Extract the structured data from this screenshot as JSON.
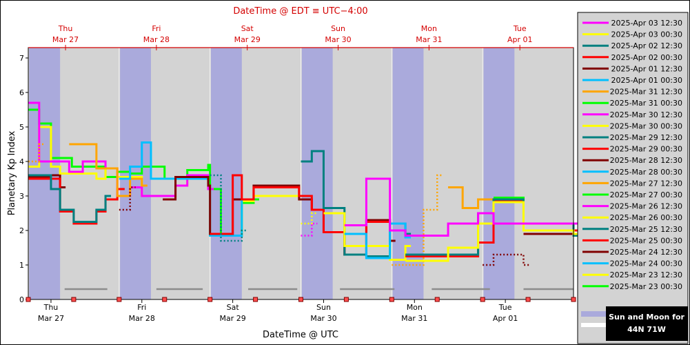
{
  "chart_data": {
    "type": "line",
    "title": "DateTime @ EDT ≡ UTC−4:00",
    "xlabel": "DateTime @ UTC",
    "ylabel": "Planetary Kp Index",
    "ylim": [
      0,
      7.3
    ],
    "xlim": [
      0,
      6
    ],
    "yticks": [
      "0",
      "1",
      "2",
      "3",
      "4",
      "5",
      "6",
      "7"
    ],
    "bottom_ticks": [
      {
        "day": "Thu",
        "date": "Mar 27",
        "x": 0.25
      },
      {
        "day": "Fri",
        "date": "Mar 28",
        "x": 1.25
      },
      {
        "day": "Sat",
        "date": "Mar 29",
        "x": 2.25
      },
      {
        "day": "Sun",
        "date": "Mar 30",
        "x": 3.25
      },
      {
        "day": "Mon",
        "date": "Mar 31",
        "x": 4.25
      },
      {
        "day": "Tue",
        "date": "Apr 01",
        "x": 5.25
      }
    ],
    "top_ticks": [
      {
        "day": "Thu",
        "date": "Mar 27",
        "x": 0.41
      },
      {
        "day": "Fri",
        "date": "Mar 28",
        "x": 1.41
      },
      {
        "day": "Sat",
        "date": "Mar 29",
        "x": 2.41
      },
      {
        "day": "Sun",
        "date": "Mar 30",
        "x": 3.41
      },
      {
        "day": "Mon",
        "date": "Mar 31",
        "x": 4.41
      },
      {
        "day": "Tue",
        "date": "Apr 01",
        "x": 5.41
      }
    ],
    "night_bands": [
      [
        0.01,
        0.35
      ],
      [
        1.01,
        1.35
      ],
      [
        2.01,
        2.35
      ],
      [
        3.01,
        3.35
      ],
      [
        4.01,
        4.35
      ],
      [
        5.01,
        5.35
      ]
    ],
    "moon_segments": [
      [
        0.4,
        0.87
      ],
      [
        1.41,
        1.92
      ],
      [
        2.42,
        2.96
      ],
      [
        3.43,
        4.03
      ],
      [
        4.44,
        5.08
      ],
      [
        5.45,
        6.0
      ]
    ],
    "moon_level": 0.3,
    "grid": true,
    "series": [
      {
        "name": "2025-Apr 03 12:30",
        "color": "#ff00ff",
        "dotted": [
          [
            3.0,
            1.85
          ],
          [
            3.12,
            2.2
          ]
        ],
        "solid": [
          [
            3.48,
            2.15
          ],
          [
            3.72,
            3.5
          ],
          [
            3.98,
            2.0
          ],
          [
            4.15,
            1.85
          ],
          [
            4.62,
            1.85
          ],
          [
            4.62,
            2.2
          ],
          [
            4.95,
            2.5
          ],
          [
            5.12,
            2.2
          ],
          [
            5.45,
            2.2
          ],
          [
            6.0,
            2.2
          ]
        ]
      },
      {
        "name": "2025-Apr 03 00:30",
        "color": "#ffff00",
        "dotted": [],
        "solid": [
          [
            4.15,
            1.12
          ],
          [
            4.62,
            1.12
          ],
          [
            4.62,
            1.5
          ],
          [
            4.95,
            2.2
          ],
          [
            5.12,
            2.82
          ],
          [
            5.45,
            2.0
          ],
          [
            6.0,
            1.9
          ]
        ]
      },
      {
        "name": "2025-Apr 02 12:30",
        "color": "#008080",
        "dotted": [],
        "solid": [
          [
            4.15,
            1.3
          ],
          [
            4.62,
            1.3
          ],
          [
            4.95,
            2.5
          ],
          [
            5.12,
            2.9
          ],
          [
            5.45,
            2.2
          ],
          [
            6.0,
            1.85
          ]
        ]
      },
      {
        "name": "2025-Apr 02 00:30",
        "color": "#ff0000",
        "dotted": [],
        "solid": [
          [
            4.15,
            1.25
          ],
          [
            4.95,
            1.65
          ],
          [
            5.12,
            2.85
          ],
          [
            5.45,
            2.2
          ],
          [
            6.0,
            2.0
          ]
        ]
      },
      {
        "name": "2025-Apr 01 12:30",
        "color": "#800000",
        "dotted": [
          [
            5.0,
            1.0
          ],
          [
            5.12,
            1.3
          ],
          [
            5.45,
            1.0
          ]
        ],
        "solid": [
          [
            5.45,
            1.9
          ],
          [
            6.0,
            2.2
          ]
        ]
      },
      {
        "name": "2025-Apr 01 00:30",
        "color": "#00bfff",
        "dotted": [],
        "solid": [
          [
            3.48,
            1.9
          ],
          [
            3.72,
            1.2
          ],
          [
            3.98,
            2.2
          ],
          [
            4.15,
            1.8
          ]
        ]
      },
      {
        "name": "2025-Mar 31 12:30",
        "color": "#ffa500",
        "dotted": [
          [
            4.0,
            1.0
          ],
          [
            4.35,
            2.6
          ],
          [
            4.5,
            3.6
          ]
        ],
        "solid": [
          [
            4.62,
            3.25
          ],
          [
            4.78,
            2.65
          ],
          [
            4.95,
            2.9
          ],
          [
            5.12,
            2.85
          ],
          [
            5.45,
            2.0
          ],
          [
            6.0,
            1.85
          ]
        ]
      },
      {
        "name": "2025-Mar 31 00:30",
        "color": "#00ff00",
        "dotted": [],
        "solid": [
          [
            5.12,
            2.95
          ],
          [
            5.45,
            2.2
          ],
          [
            6.0,
            2.0
          ]
        ]
      },
      {
        "name": "2025-Mar 30 12:30",
        "color": "#ff00ff",
        "dotted": [],
        "solid": []
      },
      {
        "name": "2025-Mar 30 00:30",
        "color": "#ffff00",
        "dotted": [
          [
            3.0,
            2.2
          ],
          [
            3.12,
            2.5
          ]
        ],
        "solid": [
          [
            3.25,
            2.5
          ],
          [
            3.48,
            1.55
          ],
          [
            3.98,
            1.15
          ],
          [
            4.15,
            1.55
          ]
        ]
      },
      {
        "name": "2025-Mar 29 12:30",
        "color": "#008080",
        "dotted": [
          [
            2.0,
            3.6
          ],
          [
            2.12,
            1.7
          ],
          [
            2.35,
            2.0
          ]
        ],
        "solid": [
          [
            3.0,
            4.0
          ],
          [
            3.12,
            4.3
          ],
          [
            3.25,
            2.65
          ],
          [
            3.48,
            1.3
          ],
          [
            3.72,
            1.25
          ],
          [
            3.98,
            2.2
          ],
          [
            4.15,
            1.9
          ]
        ]
      },
      {
        "name": "2025-Mar 29 00:30",
        "color": "#ff0000",
        "dotted": [],
        "solid": [
          [
            2.0,
            1.9
          ],
          [
            2.25,
            3.6
          ],
          [
            2.35,
            2.9
          ],
          [
            2.48,
            3.25
          ],
          [
            2.98,
            3.0
          ],
          [
            3.12,
            2.6
          ],
          [
            3.25,
            1.95
          ],
          [
            3.48,
            1.3
          ],
          [
            3.72,
            2.25
          ],
          [
            3.98,
            2.0
          ]
        ]
      },
      {
        "name": "2025-Mar 28 12:30",
        "color": "#800000",
        "dotted": [
          [
            1.0,
            2.6
          ],
          [
            1.12,
            3.25
          ]
        ],
        "solid": [
          [
            1.48,
            2.9
          ],
          [
            1.62,
            3.55
          ],
          [
            1.98,
            3.3
          ],
          [
            2.0,
            1.9
          ],
          [
            2.25,
            2.9
          ],
          [
            2.48,
            3.3
          ],
          [
            2.98,
            2.9
          ],
          [
            3.12,
            2.6
          ],
          [
            3.25,
            1.95
          ],
          [
            3.48,
            1.3
          ],
          [
            3.72,
            2.3
          ],
          [
            3.98,
            1.7
          ]
        ]
      },
      {
        "name": "2025-Mar 28 00:30",
        "color": "#00bfff",
        "dotted": [],
        "solid": [
          [
            1.0,
            3.5
          ],
          [
            1.12,
            3.85
          ],
          [
            1.25,
            4.55
          ],
          [
            1.35,
            3.5
          ],
          [
            1.62,
            3.5
          ],
          [
            1.98,
            3.3
          ],
          [
            2.0,
            1.85
          ],
          [
            2.35,
            2.9
          ]
        ]
      },
      {
        "name": "2025-Mar 27 12:30",
        "color": "#ffa500",
        "dotted": [
          [
            0.0,
            4.0
          ],
          [
            0.12,
            4.5
          ]
        ],
        "solid": [
          [
            0.45,
            4.5
          ],
          [
            0.75,
            3.8
          ],
          [
            0.98,
            3.0
          ],
          [
            1.12,
            3.5
          ],
          [
            1.25,
            3.3
          ]
        ]
      },
      {
        "name": "2025-Mar 27 00:30",
        "color": "#00ff00",
        "dotted": [],
        "solid": []
      },
      {
        "name": "2025-Mar 26 12:30",
        "color": "#ff00ff",
        "dotted": [],
        "solid": [
          [
            0.0,
            5.7
          ],
          [
            0.12,
            4.0
          ],
          [
            0.25,
            4.0
          ],
          [
            0.45,
            3.7
          ],
          [
            0.6,
            4.0
          ],
          [
            0.85,
            3.8
          ],
          [
            0.98,
            3.0
          ],
          [
            1.12,
            3.25
          ],
          [
            1.25,
            3.0
          ],
          [
            1.62,
            3.3
          ],
          [
            1.75,
            3.6
          ],
          [
            1.98,
            3.2
          ]
        ]
      },
      {
        "name": "2025-Mar 26 00:30",
        "color": "#ffff00",
        "dotted": [],
        "solid": [
          [
            0.0,
            3.85
          ],
          [
            0.12,
            5.0
          ],
          [
            0.25,
            3.85
          ],
          [
            0.35,
            3.65
          ],
          [
            0.75,
            3.5
          ],
          [
            0.85,
            3.8
          ],
          [
            0.98,
            3.55
          ],
          [
            1.25,
            3.0
          ],
          [
            1.62,
            3.3
          ],
          [
            1.75,
            3.5
          ],
          [
            1.98,
            3.25
          ],
          [
            2.0,
            1.85
          ],
          [
            2.35,
            2.85
          ],
          [
            2.48,
            3.0
          ],
          [
            2.98,
            3.0
          ]
        ]
      },
      {
        "name": "2025-Mar 25 12:30",
        "color": "#008080",
        "dotted": [],
        "solid": [
          [
            0.0,
            3.6
          ],
          [
            0.25,
            3.2
          ],
          [
            0.35,
            2.6
          ],
          [
            0.5,
            2.25
          ],
          [
            0.75,
            2.6
          ],
          [
            0.85,
            3.0
          ]
        ]
      },
      {
        "name": "2025-Mar 25 00:30",
        "color": "#ff0000",
        "dotted": [],
        "solid": [
          [
            0.0,
            3.5
          ],
          [
            0.25,
            3.5
          ],
          [
            0.35,
            2.55
          ],
          [
            0.5,
            2.2
          ],
          [
            0.75,
            2.55
          ],
          [
            0.85,
            2.9
          ],
          [
            0.98,
            3.2
          ],
          [
            1.0,
            3.2
          ]
        ]
      },
      {
        "name": "2025-Mar 24 12:30",
        "color": "#800000",
        "dotted": [],
        "solid": [
          [
            0.0,
            3.55
          ],
          [
            0.25,
            3.6
          ],
          [
            0.35,
            3.25
          ]
        ]
      },
      {
        "name": "2025-Mar 24 00:30",
        "color": "#00bfff",
        "dotted": [],
        "solid": []
      },
      {
        "name": "2025-Mar 23 12:30",
        "color": "#ffff00",
        "dotted": [],
        "solid": []
      },
      {
        "name": "2025-Mar 23 00:30",
        "color": "#00ff00",
        "dotted": [],
        "solid": [
          [
            0.0,
            5.5
          ],
          [
            0.12,
            5.1
          ],
          [
            0.25,
            4.1
          ],
          [
            0.48,
            3.85
          ],
          [
            0.62,
            3.85
          ],
          [
            0.85,
            3.55
          ],
          [
            0.98,
            3.7
          ],
          [
            1.12,
            3.65
          ],
          [
            1.25,
            3.85
          ],
          [
            1.5,
            3.5
          ],
          [
            1.75,
            3.75
          ],
          [
            1.98,
            3.9
          ],
          [
            2.0,
            3.2
          ],
          [
            2.12,
            1.85
          ],
          [
            2.35,
            2.8
          ],
          [
            2.48,
            2.9
          ]
        ]
      }
    ],
    "legend_position": "right",
    "caption": [
      "Sun and Moon for",
      "44N 71W"
    ]
  }
}
